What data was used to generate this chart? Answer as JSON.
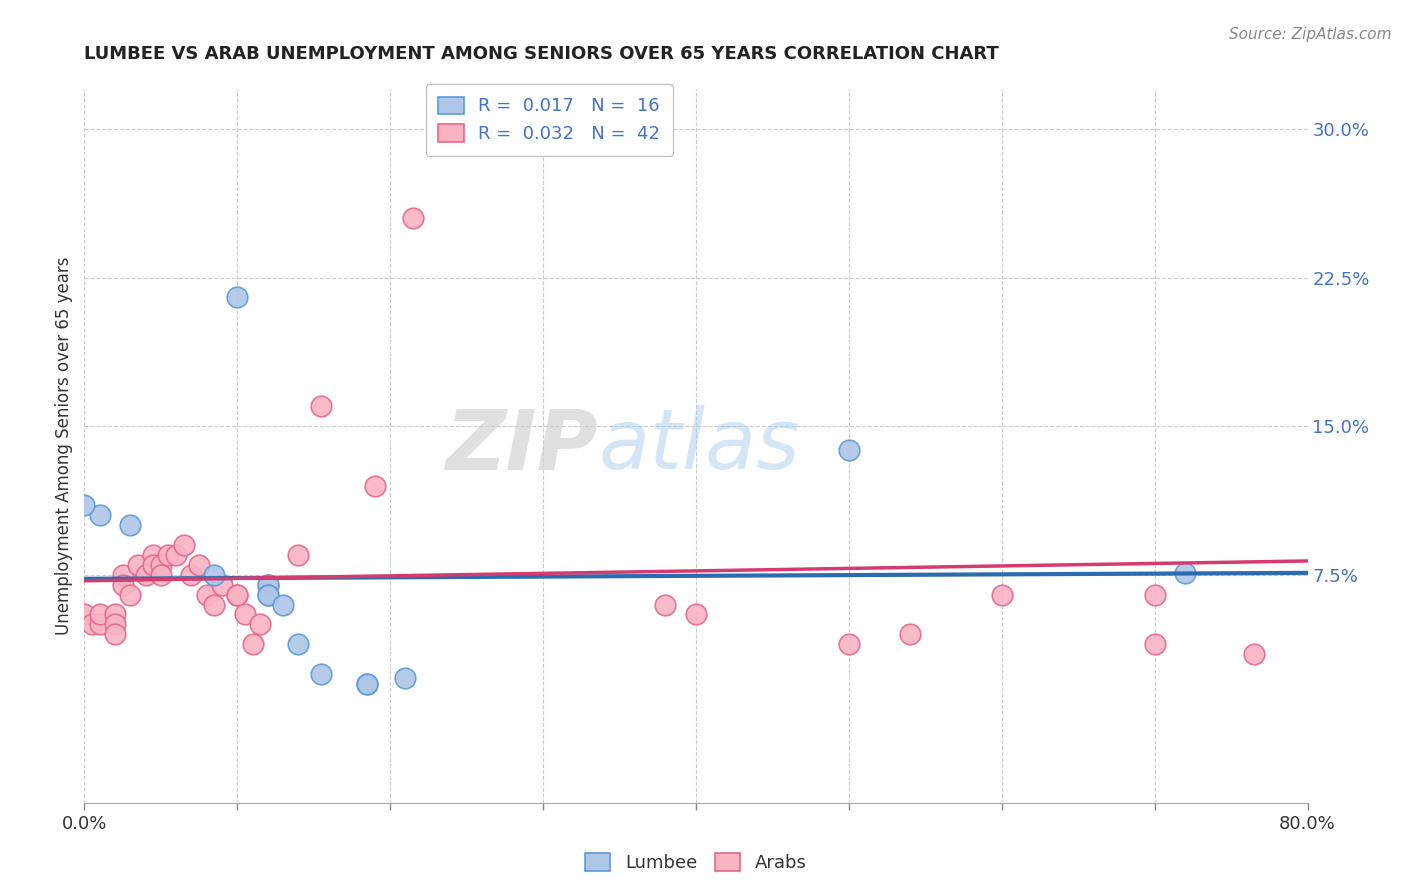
{
  "title": "LUMBEE VS ARAB UNEMPLOYMENT AMONG SENIORS OVER 65 YEARS CORRELATION CHART",
  "source": "Source: ZipAtlas.com",
  "ylabel": "Unemployment Among Seniors over 65 years",
  "xlim": [
    0.0,
    0.8
  ],
  "ylim": [
    -0.04,
    0.32
  ],
  "xticks": [
    0.0,
    0.1,
    0.2,
    0.3,
    0.4,
    0.5,
    0.6,
    0.7,
    0.8
  ],
  "xticklabels": [
    "0.0%",
    "",
    "",
    "",
    "",
    "",
    "",
    "",
    "80.0%"
  ],
  "ytick_positions": [
    0.075,
    0.15,
    0.225,
    0.3
  ],
  "ytick_labels": [
    "7.5%",
    "15.0%",
    "22.5%",
    "30.0%"
  ],
  "lumbee_R": "0.017",
  "lumbee_N": "16",
  "arab_R": "0.032",
  "arab_N": "42",
  "lumbee_color": "#aec6e8",
  "arab_color": "#f9b4c4",
  "lumbee_edge_color": "#5b9bd5",
  "arab_edge_color": "#e8688a",
  "lumbee_line_color": "#2b6cb0",
  "arab_line_color": "#d63b6e",
  "watermark_zip": "ZIP",
  "watermark_atlas": "atlas",
  "background_color": "#ffffff",
  "grid_color": "#cccccc",
  "lumbee_x": [
    0.01,
    0.03,
    0.0,
    0.085,
    0.1,
    0.12,
    0.12,
    0.12,
    0.13,
    0.14,
    0.5,
    0.72,
    0.155,
    0.185,
    0.21,
    0.185
  ],
  "lumbee_y": [
    0.105,
    0.1,
    0.11,
    0.075,
    0.215,
    0.07,
    0.065,
    0.065,
    0.06,
    0.04,
    0.138,
    0.076,
    0.025,
    0.02,
    0.023,
    0.02
  ],
  "arab_x": [
    0.0,
    0.005,
    0.01,
    0.01,
    0.02,
    0.02,
    0.02,
    0.025,
    0.025,
    0.03,
    0.035,
    0.04,
    0.045,
    0.045,
    0.05,
    0.05,
    0.055,
    0.06,
    0.065,
    0.07,
    0.075,
    0.08,
    0.085,
    0.09,
    0.1,
    0.1,
    0.105,
    0.11,
    0.115,
    0.12,
    0.14,
    0.155,
    0.19,
    0.215,
    0.38,
    0.4,
    0.5,
    0.54,
    0.6,
    0.7,
    0.7,
    0.765
  ],
  "arab_y": [
    0.055,
    0.05,
    0.05,
    0.055,
    0.055,
    0.05,
    0.045,
    0.075,
    0.07,
    0.065,
    0.08,
    0.075,
    0.085,
    0.08,
    0.08,
    0.075,
    0.085,
    0.085,
    0.09,
    0.075,
    0.08,
    0.065,
    0.06,
    0.07,
    0.065,
    0.065,
    0.055,
    0.04,
    0.05,
    0.07,
    0.085,
    0.16,
    0.12,
    0.255,
    0.06,
    0.055,
    0.04,
    0.045,
    0.065,
    0.04,
    0.065,
    0.035
  ]
}
